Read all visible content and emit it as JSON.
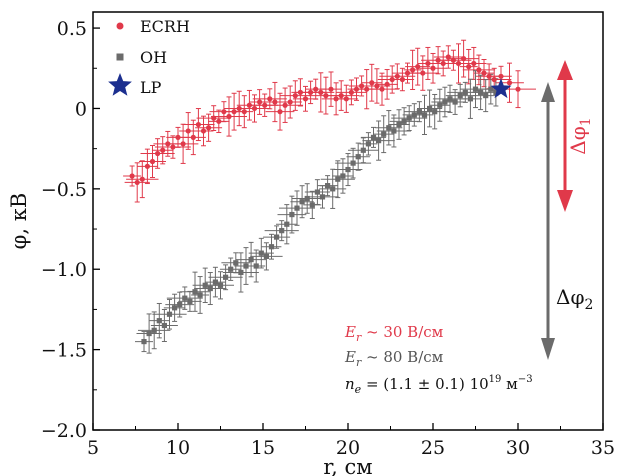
{
  "chart_data": {
    "type": "scatter",
    "xlabel": "r, см",
    "ylabel": "φ, кВ",
    "xlim": [
      5,
      35
    ],
    "ylim": [
      -2.0,
      0.6
    ],
    "xticks": [
      5,
      10,
      15,
      20,
      25,
      30,
      35
    ],
    "yticks": [
      -2.0,
      -1.5,
      -1.0,
      -0.5,
      0,
      0.5
    ],
    "xtick_labels": [
      "5",
      "10",
      "15",
      "20",
      "25",
      "30",
      "35"
    ],
    "ytick_labels": [
      "−2.0",
      "−1.5",
      "−1.0",
      "−0.5",
      "0",
      "0.5"
    ],
    "legend": {
      "position": "top-left",
      "entries": [
        "ECRH",
        "OH",
        "LP"
      ]
    },
    "series": [
      {
        "name": "ECRH",
        "color": "#e0394a",
        "marker": "circle",
        "x": [
          7.3,
          7.6,
          7.9,
          8.2,
          8.5,
          8.8,
          9.1,
          9.4,
          9.7,
          10.0,
          10.3,
          10.6,
          10.9,
          11.2,
          11.5,
          11.8,
          12.1,
          12.4,
          12.7,
          13.0,
          13.3,
          13.6,
          13.9,
          14.2,
          14.5,
          14.8,
          15.1,
          15.4,
          15.7,
          16.0,
          16.3,
          16.6,
          16.9,
          17.2,
          17.5,
          17.8,
          18.1,
          18.4,
          18.7,
          19.0,
          19.3,
          19.6,
          19.9,
          20.2,
          20.5,
          20.8,
          21.1,
          21.4,
          21.7,
          22.0,
          22.3,
          22.6,
          22.9,
          23.2,
          23.5,
          23.8,
          24.1,
          24.4,
          24.7,
          25.0,
          25.3,
          25.6,
          25.9,
          26.2,
          26.5,
          26.8,
          27.1,
          27.4,
          27.7,
          28.0,
          28.3,
          28.6,
          29.0,
          29.5,
          30.0
        ],
        "y": [
          -0.42,
          -0.46,
          -0.44,
          -0.36,
          -0.33,
          -0.28,
          -0.26,
          -0.22,
          -0.24,
          -0.18,
          -0.22,
          -0.14,
          -0.18,
          -0.1,
          -0.14,
          -0.12,
          -0.06,
          -0.08,
          -0.02,
          -0.05,
          -0.02,
          0.0,
          -0.02,
          0.02,
          0.0,
          0.04,
          0.02,
          0.06,
          0.04,
          -0.02,
          0.02,
          0.04,
          0.08,
          0.1,
          0.06,
          0.1,
          0.12,
          0.1,
          0.08,
          0.12,
          0.06,
          0.08,
          0.06,
          0.1,
          0.12,
          0.14,
          0.12,
          0.16,
          0.14,
          0.12,
          0.15,
          0.18,
          0.2,
          0.18,
          0.22,
          0.24,
          0.26,
          0.22,
          0.28,
          0.25,
          0.3,
          0.28,
          0.32,
          0.3,
          0.28,
          0.31,
          0.26,
          0.28,
          0.24,
          0.22,
          0.2,
          0.18,
          0.2,
          0.16,
          0.12
        ]
      },
      {
        "name": "OH",
        "color": "#6b6b6b",
        "marker": "square",
        "x": [
          8.0,
          8.3,
          8.6,
          8.9,
          9.2,
          9.5,
          9.8,
          10.1,
          10.4,
          10.7,
          11.0,
          11.3,
          11.6,
          11.9,
          12.2,
          12.5,
          12.8,
          13.1,
          13.4,
          13.7,
          14.0,
          14.3,
          14.6,
          14.9,
          15.2,
          15.5,
          15.8,
          16.1,
          16.4,
          16.7,
          17.0,
          17.3,
          17.6,
          17.9,
          18.2,
          18.5,
          18.8,
          19.1,
          19.4,
          19.7,
          20.0,
          20.3,
          20.6,
          20.9,
          21.2,
          21.5,
          21.8,
          22.1,
          22.4,
          22.7,
          23.0,
          23.3,
          23.6,
          23.9,
          24.2,
          24.5,
          24.8,
          25.1,
          25.4,
          25.7,
          26.0,
          26.3,
          26.6,
          26.9,
          27.2,
          27.5,
          27.8,
          28.1,
          28.4,
          28.7
        ],
        "y": [
          -1.45,
          -1.4,
          -1.38,
          -1.32,
          -1.35,
          -1.28,
          -1.24,
          -1.22,
          -1.18,
          -1.2,
          -1.14,
          -1.16,
          -1.1,
          -1.12,
          -1.08,
          -1.1,
          -1.05,
          -1.0,
          -0.96,
          -1.02,
          -0.98,
          -0.94,
          -0.98,
          -0.9,
          -0.92,
          -0.86,
          -0.8,
          -0.76,
          -0.72,
          -0.66,
          -0.62,
          -0.58,
          -0.56,
          -0.6,
          -0.52,
          -0.55,
          -0.48,
          -0.5,
          -0.44,
          -0.42,
          -0.38,
          -0.34,
          -0.3,
          -0.26,
          -0.22,
          -0.18,
          -0.2,
          -0.16,
          -0.12,
          -0.14,
          -0.1,
          -0.08,
          -0.06,
          -0.04,
          -0.02,
          -0.04,
          0.0,
          -0.02,
          0.02,
          0.04,
          0.06,
          0.04,
          0.08,
          0.1,
          0.06,
          0.12,
          0.1,
          0.08,
          0.12,
          0.1
        ]
      },
      {
        "name": "LP",
        "color": "#1c2f8f",
        "marker": "star",
        "x": [
          29.0
        ],
        "y": [
          0.12
        ]
      }
    ],
    "annotations": {
      "er_ecrh": "E_r ~ 30 В/см",
      "er_oh": "E_r ~ 80 В/см",
      "ne": "n_e = (1.1 ± 0.1) 10^19 м^−3",
      "dphi1": "Δφ1",
      "dphi2": "Δφ2"
    }
  }
}
